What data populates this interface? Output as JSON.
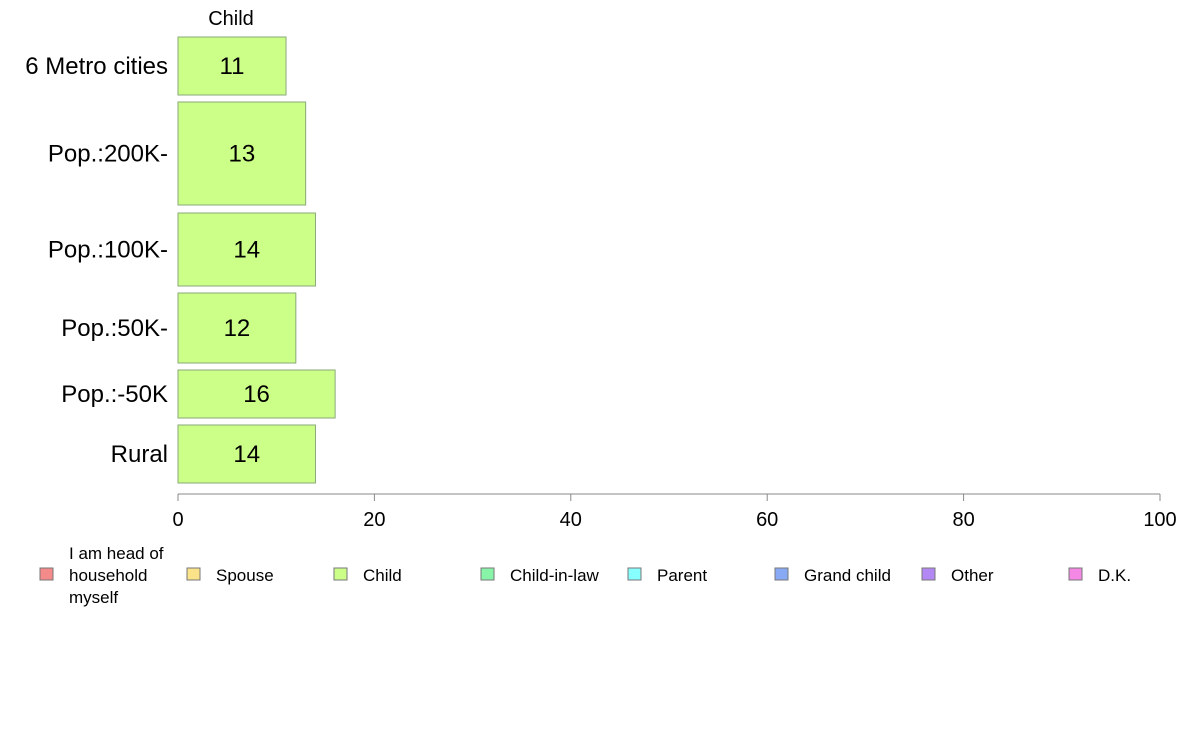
{
  "chart_data": {
    "type": "bar",
    "orientation": "horizontal",
    "stacked": true,
    "column_header": "Child",
    "categories": [
      "6 Metro cities",
      "Pop.:200K-",
      "Pop.:100K-",
      "Pop.:50K-",
      "Pop.:-50K",
      "Rural"
    ],
    "series": [
      {
        "name": "Child",
        "color": "#ccff88",
        "values": [
          11,
          13,
          14,
          12,
          16,
          14
        ]
      }
    ],
    "xlim": [
      0,
      100
    ],
    "xticks": [
      0,
      20,
      40,
      60,
      80,
      100
    ],
    "grid": false,
    "legend_position": "bottom",
    "legend": [
      {
        "label": "I am head of household myself",
        "lines": [
          "I am head of",
          "household",
          "myself"
        ],
        "color": "#f48a8a"
      },
      {
        "label": "Spouse",
        "lines": [
          "Spouse"
        ],
        "color": "#fbe38a"
      },
      {
        "label": "Child",
        "lines": [
          "Child"
        ],
        "color": "#ccff88"
      },
      {
        "label": "Child-in-law",
        "lines": [
          "Child-in-law"
        ],
        "color": "#88f4a8"
      },
      {
        "label": "Parent",
        "lines": [
          "Parent"
        ],
        "color": "#88ffff"
      },
      {
        "label": "Grand child",
        "lines": [
          "Grand child"
        ],
        "color": "#88aaf4"
      },
      {
        "label": "Other",
        "lines": [
          "Other"
        ],
        "color": "#b488f4"
      },
      {
        "label": "D.K.",
        "lines": [
          "D.K."
        ],
        "color": "#f488e4"
      }
    ]
  }
}
